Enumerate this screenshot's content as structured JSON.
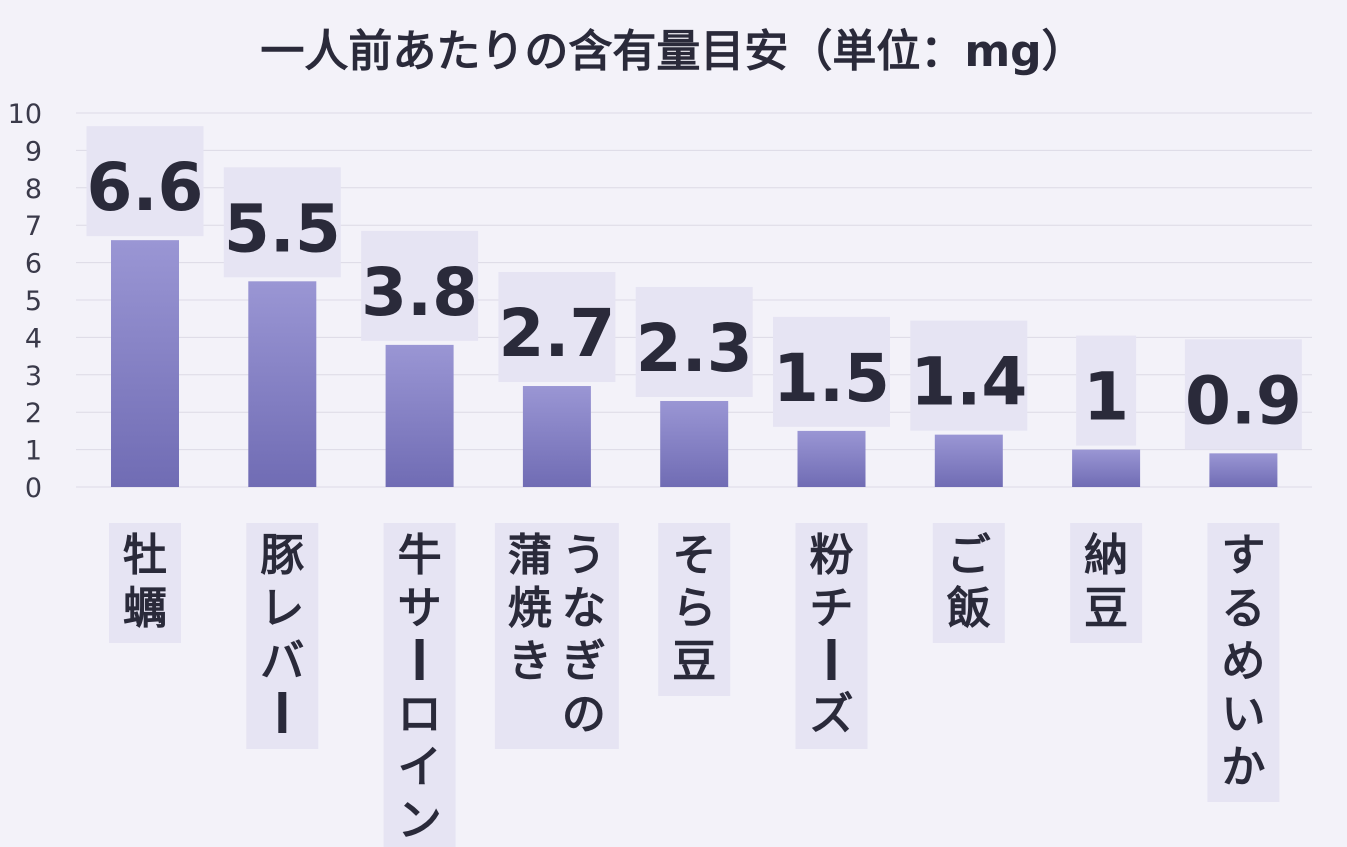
{
  "chart_data": {
    "type": "bar",
    "title": "一人前あたりの含有量目安（単位：mg）",
    "xlabel": "",
    "ylabel": "",
    "ylim": [
      0,
      10
    ],
    "yticks": [
      0,
      1,
      2,
      3,
      4,
      5,
      6,
      7,
      8,
      9,
      10
    ],
    "grid": true,
    "legend": "none",
    "categories": [
      "牡蠣",
      "豚レバー",
      "牛サーロイン",
      "うなぎの\n蒲焼き",
      "そら豆",
      "粉チーズ",
      "ご飯",
      "納豆",
      "するめいか"
    ],
    "values": [
      6.6,
      5.5,
      3.8,
      2.7,
      2.3,
      1.5,
      1.4,
      1,
      0.9
    ],
    "value_labels": [
      "6.6",
      "5.5",
      "3.8",
      "2.7",
      "2.3",
      "1.5",
      "1.4",
      "1",
      "0.9"
    ],
    "colors": {
      "bar_top": "#9a96d4",
      "bar_bottom": "#706cb4",
      "label_bg": "#e6e4f3",
      "text": "#2a2a3a",
      "grid": "#dcdae6",
      "background": "#f3f2f9"
    }
  }
}
